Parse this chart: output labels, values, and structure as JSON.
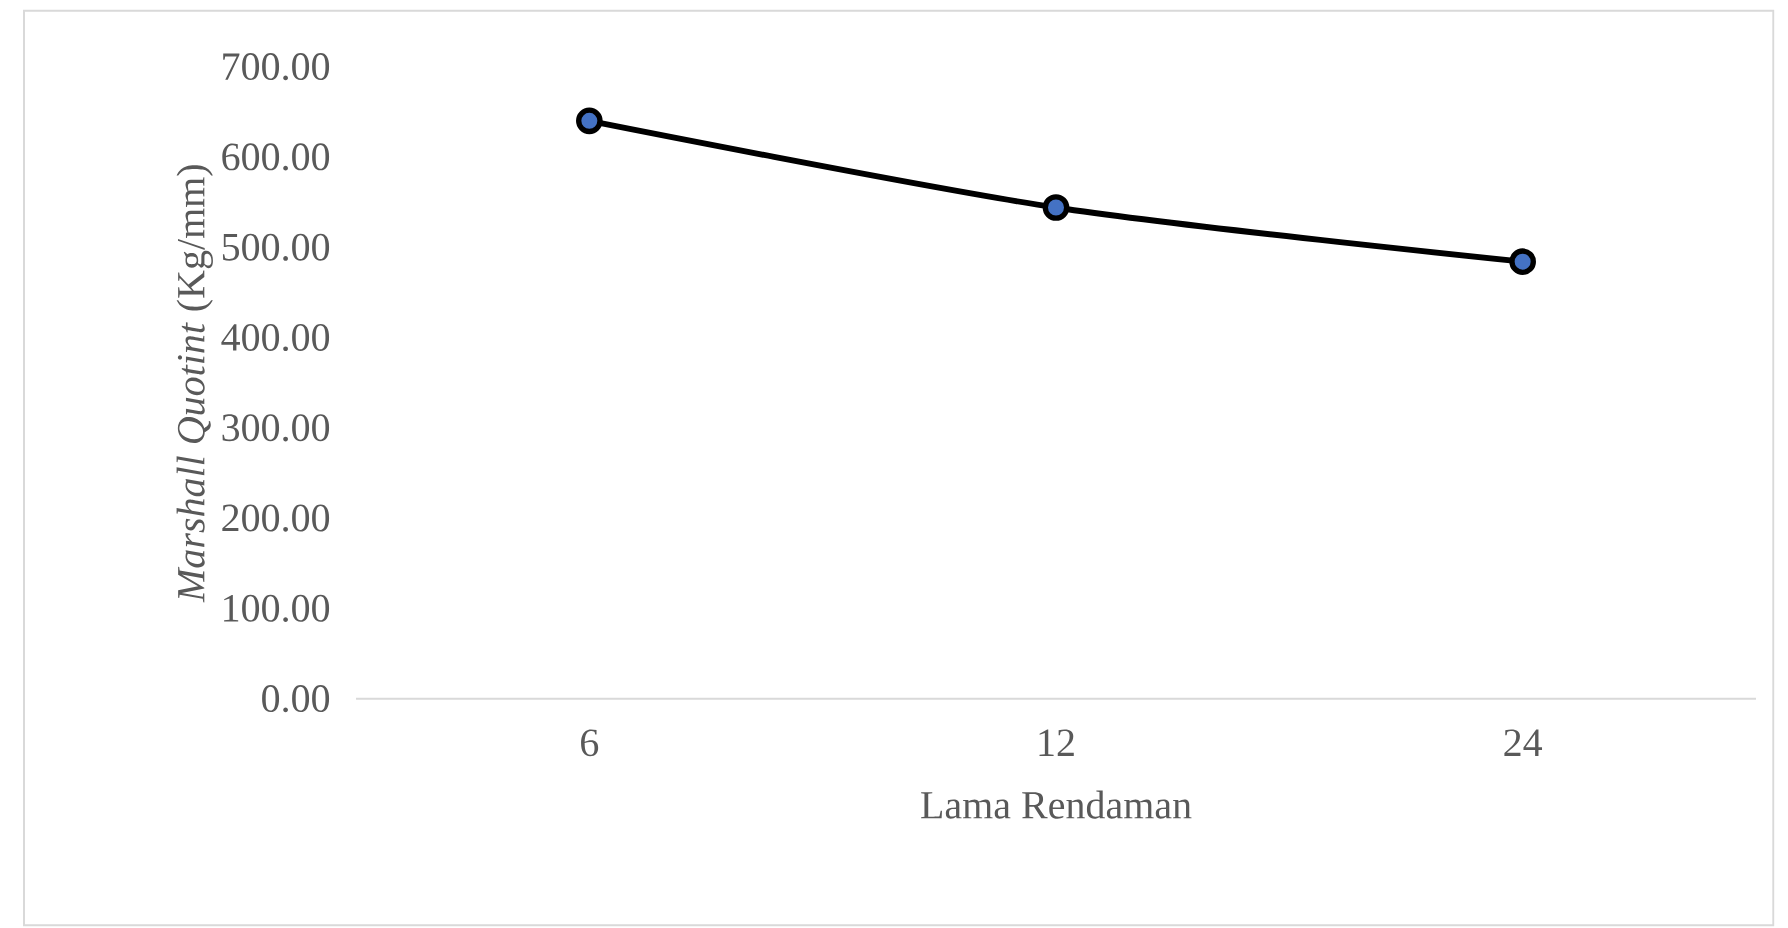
{
  "chart_data": {
    "type": "line",
    "xlabel": "Lama Rendaman",
    "ylabel": "*Marshall Quotint* (Kg/mm)",
    "categories": [
      "6",
      "12",
      "24"
    ],
    "series": [
      {
        "color": "#000000",
        "values": [
          640,
          544,
          484
        ]
      }
    ],
    "marker": "circle",
    "line_style": "solid",
    "grid": false,
    "ylim": [
      0,
      700
    ],
    "yticks": [
      {
        "value": 0,
        "label": "0.00"
      },
      {
        "value": 100,
        "label": "100.00"
      },
      {
        "value": 200,
        "label": "200.00"
      },
      {
        "value": 300,
        "label": "300.00"
      },
      {
        "value": 400,
        "label": "400.00"
      },
      {
        "value": 500,
        "label": "500.00"
      },
      {
        "value": 600,
        "label": "600.00"
      },
      {
        "value": 700,
        "label": "700.00"
      }
    ]
  }
}
